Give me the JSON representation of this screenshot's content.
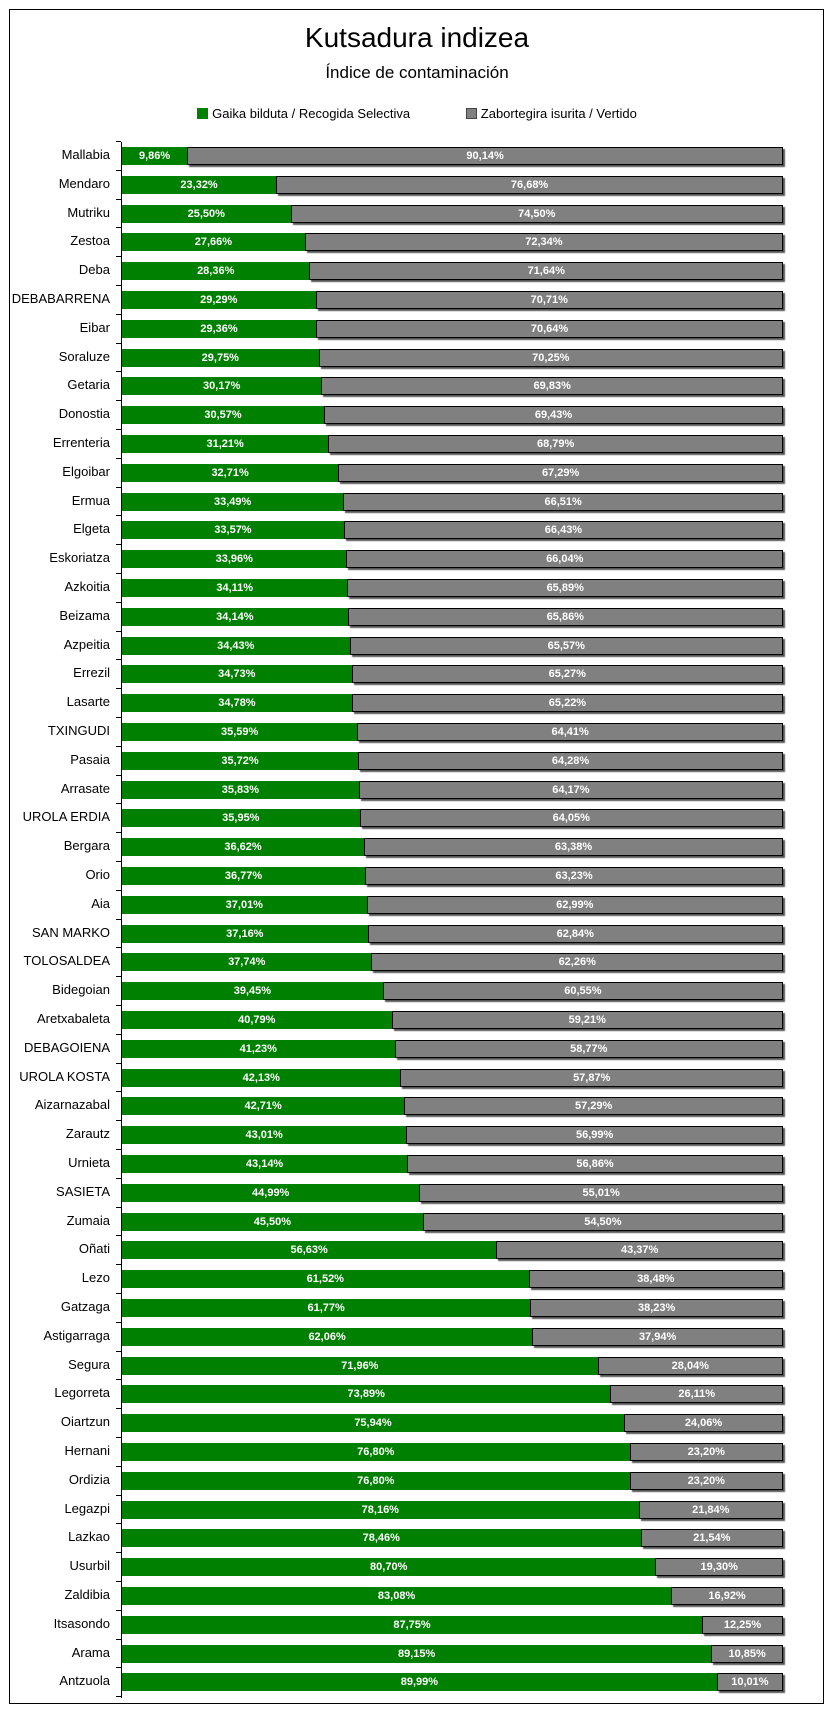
{
  "chart_data": {
    "type": "bar",
    "stacked": true,
    "orientation": "horizontal",
    "title": "Kutsadura indizea",
    "subtitle": "Índice de contaminación",
    "legend": [
      "Gaika bilduta / Recogida Selectiva",
      "Zabortegira isurita / Vertido"
    ],
    "legend_position": "top",
    "colors": [
      "#008000",
      "#808080"
    ],
    "xlim": [
      0,
      100
    ],
    "categories": [
      "Mallabia",
      "Mendaro",
      "Mutriku",
      "Zestoa",
      "Deba",
      "DEBABARRENA",
      "Eibar",
      "Soraluze",
      "Getaria",
      "Donostia",
      "Errenteria",
      "Elgoibar",
      "Ermua",
      "Elgeta",
      "Eskoriatza",
      "Azkoitia",
      "Beizama",
      "Azpeitia",
      "Errezil",
      "Lasarte",
      "TXINGUDI",
      "Pasaia",
      "Arrasate",
      "UROLA ERDIA",
      "Bergara",
      "Orio",
      "Aia",
      "SAN MARKO",
      "TOLOSALDEA",
      "Bidegoian",
      "Aretxabaleta",
      "DEBAGOIENA",
      "UROLA KOSTA",
      "Aizarnazabal",
      "Zarautz",
      "Urnieta",
      "SASIETA",
      "Zumaia",
      "Oñati",
      "Lezo",
      "Gatzaga",
      "Astigarraga",
      "Segura",
      "Legorreta",
      "Oiartzun",
      "Hernani",
      "Ordizia",
      "Legazpi",
      "Lazkao",
      "Usurbil",
      "Zaldibia",
      "Itsasondo",
      "Arama",
      "Antzuola"
    ],
    "series": [
      {
        "name": "Gaika bilduta / Recogida Selectiva",
        "values": [
          9.86,
          23.32,
          25.5,
          27.66,
          28.36,
          29.29,
          29.36,
          29.75,
          30.17,
          30.57,
          31.21,
          32.71,
          33.49,
          33.57,
          33.96,
          34.11,
          34.14,
          34.43,
          34.73,
          34.78,
          35.59,
          35.72,
          35.83,
          35.95,
          36.62,
          36.77,
          37.01,
          37.16,
          37.74,
          39.45,
          40.79,
          41.23,
          42.13,
          42.71,
          43.01,
          43.14,
          44.99,
          45.5,
          56.63,
          61.52,
          61.77,
          62.06,
          71.96,
          73.89,
          75.94,
          76.8,
          76.8,
          78.16,
          78.46,
          80.7,
          83.08,
          87.75,
          89.15,
          89.99
        ]
      },
      {
        "name": "Zabortegira isurita / Vertido",
        "values": [
          90.14,
          76.68,
          74.5,
          72.34,
          71.64,
          70.71,
          70.64,
          70.25,
          69.83,
          69.43,
          68.79,
          67.29,
          66.51,
          66.43,
          66.04,
          65.89,
          65.86,
          65.57,
          65.27,
          65.22,
          64.41,
          64.28,
          64.17,
          64.05,
          63.38,
          63.23,
          62.99,
          62.84,
          62.26,
          60.55,
          59.21,
          58.77,
          57.87,
          57.29,
          56.99,
          56.86,
          55.01,
          54.5,
          43.37,
          38.48,
          38.23,
          37.94,
          28.04,
          26.11,
          24.06,
          23.2,
          23.2,
          21.84,
          21.54,
          19.3,
          16.92,
          12.25,
          10.85,
          10.01
        ]
      }
    ]
  }
}
